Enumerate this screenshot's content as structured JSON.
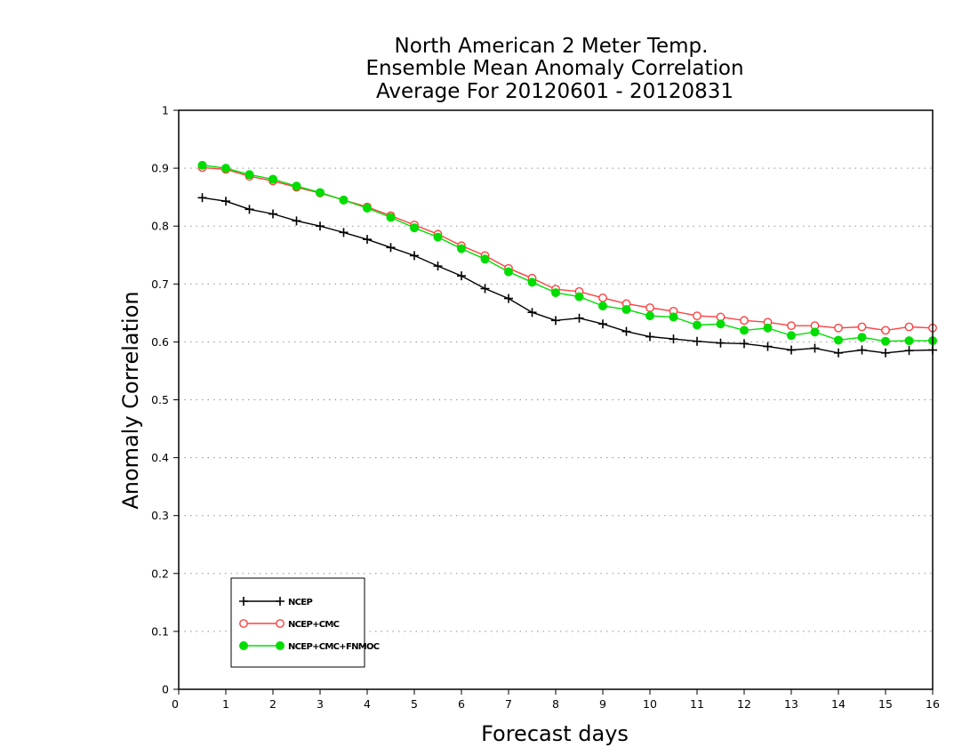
{
  "chart_data": {
    "type": "line",
    "title": [
      "North American 2 Meter Temp.",
      "Ensemble Mean Anomaly Correlation",
      "Average For 20120601 - 20120831"
    ],
    "xlabel": "Forecast days",
    "ylabel": "Anomaly Correlation",
    "xlim": [
      0,
      16
    ],
    "ylim": [
      0,
      1
    ],
    "xticks": [
      "0",
      "1",
      "2",
      "3",
      "4",
      "5",
      "6",
      "7",
      "8",
      "9",
      "10",
      "11",
      "12",
      "13",
      "14",
      "15",
      "16"
    ],
    "yticks": [
      "0",
      "0.1",
      "0.2",
      "0.3",
      "0.4",
      "0.5",
      "0.6",
      "0.7",
      "0.8",
      "0.9",
      "1"
    ],
    "grid": "dotted horizontal",
    "legend_position": "bottom-left",
    "x": [
      0.5,
      1,
      1.5,
      2,
      2.5,
      3,
      3.5,
      4,
      4.5,
      5,
      5.5,
      6,
      6.5,
      7,
      7.5,
      8,
      8.5,
      9,
      9.5,
      10,
      10.5,
      11,
      11.5,
      12,
      12.5,
      13,
      13.5,
      14,
      14.5,
      15,
      15.5,
      16
    ],
    "series": [
      {
        "name": "NCEP",
        "color": "#000000",
        "marker": "plus",
        "values": [
          0.849,
          0.843,
          0.829,
          0.821,
          0.809,
          0.8,
          0.789,
          0.777,
          0.763,
          0.749,
          0.731,
          0.714,
          0.692,
          0.675,
          0.651,
          0.637,
          0.641,
          0.631,
          0.618,
          0.609,
          0.605,
          0.601,
          0.598,
          0.597,
          0.592,
          0.586,
          0.589,
          0.581,
          0.586,
          0.581,
          0.585,
          0.586
        ]
      },
      {
        "name": "NCEP+CMC",
        "color": "#ff4040",
        "marker": "open-circle",
        "values": [
          0.901,
          0.898,
          0.886,
          0.878,
          0.867,
          0.857,
          0.845,
          0.833,
          0.818,
          0.802,
          0.786,
          0.766,
          0.749,
          0.727,
          0.71,
          0.691,
          0.687,
          0.676,
          0.666,
          0.659,
          0.653,
          0.645,
          0.643,
          0.637,
          0.634,
          0.628,
          0.628,
          0.624,
          0.626,
          0.62,
          0.626,
          0.624
        ]
      },
      {
        "name": "NCEP+CMC+FNMOC",
        "color": "#00dd00",
        "marker": "filled-circle",
        "values": [
          0.905,
          0.9,
          0.889,
          0.881,
          0.869,
          0.858,
          0.845,
          0.831,
          0.815,
          0.797,
          0.781,
          0.761,
          0.743,
          0.721,
          0.703,
          0.685,
          0.678,
          0.662,
          0.656,
          0.645,
          0.643,
          0.629,
          0.631,
          0.62,
          0.624,
          0.611,
          0.617,
          0.603,
          0.608,
          0.601,
          0.602,
          0.602
        ]
      }
    ]
  }
}
